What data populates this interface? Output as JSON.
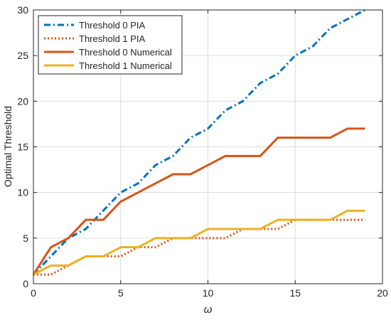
{
  "chart_data": {
    "type": "line",
    "xlabel": "ω",
    "ylabel": "Optimal Threshold",
    "xlim": [
      0,
      20
    ],
    "ylim": [
      0,
      30
    ],
    "xticks": [
      0,
      5,
      10,
      15,
      20
    ],
    "yticks": [
      0,
      5,
      10,
      15,
      20,
      25,
      30
    ],
    "grid": true,
    "legend_position": "top-left",
    "x": [
      0,
      1,
      2,
      3,
      4,
      5,
      6,
      7,
      8,
      9,
      10,
      11,
      12,
      13,
      14,
      15,
      16,
      17,
      18,
      19
    ],
    "series": [
      {
        "name": "Threshold 0 PIA",
        "color": "#0072BD",
        "dash": "dashdot",
        "values": [
          1,
          3,
          5,
          6,
          8,
          10,
          11,
          13,
          14,
          16,
          17,
          19,
          20,
          22,
          23,
          25,
          26,
          28,
          29,
          30
        ]
      },
      {
        "name": "Threshold 1 PIA",
        "color": "#D95319",
        "dash": "dotted",
        "values": [
          1,
          1,
          2,
          3,
          3,
          3,
          4,
          4,
          5,
          5,
          5,
          5,
          6,
          6,
          6,
          7,
          7,
          7,
          7,
          7
        ]
      },
      {
        "name": "Threshold 0 Numerical",
        "color": "#D95319",
        "dash": "solid",
        "values": [
          1,
          4,
          5,
          7,
          7,
          9,
          10,
          11,
          12,
          12,
          13,
          14,
          14,
          14,
          16,
          16,
          16,
          16,
          17,
          17
        ]
      },
      {
        "name": "Threshold 1 Numerical",
        "color": "#EDB120",
        "dash": "solid",
        "values": [
          1,
          2,
          2,
          3,
          3,
          4,
          4,
          5,
          5,
          5,
          6,
          6,
          6,
          6,
          7,
          7,
          7,
          7,
          8,
          8
        ]
      }
    ]
  }
}
